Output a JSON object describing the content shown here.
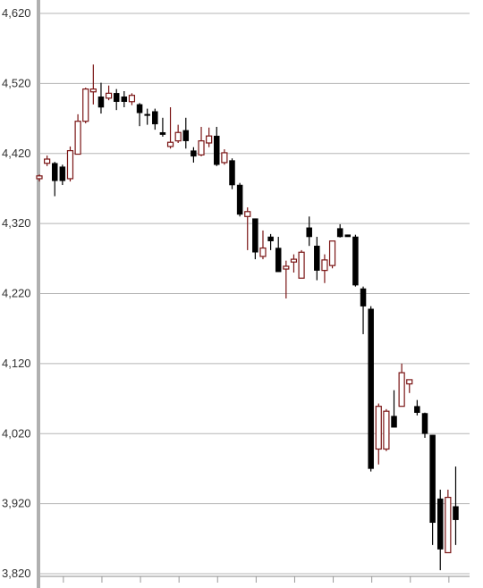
{
  "chart_data": {
    "type": "candlestick",
    "ylim": [
      3820,
      4620
    ],
    "yticks": [
      {
        "value": 3820,
        "label": "3,820"
      },
      {
        "value": 3920,
        "label": "3,920"
      },
      {
        "value": 4020,
        "label": "4,020"
      },
      {
        "value": 4120,
        "label": "4,120"
      },
      {
        "value": 4220,
        "label": "4,220"
      },
      {
        "value": 4320,
        "label": "4,320"
      },
      {
        "value": 4420,
        "label": "4,420"
      },
      {
        "value": 4520,
        "label": "4,520"
      },
      {
        "value": 4620,
        "label": "4,620"
      }
    ],
    "grid": true,
    "up_color": "#7a1414",
    "down_color": "#000000",
    "open": [
      4384,
      4406,
      4406,
      4401,
      4384,
      4419,
      4466,
      4508,
      4501,
      4499,
      4506,
      4501,
      4494,
      4490,
      4476,
      4480,
      4450,
      4430,
      4438,
      4453,
      4424,
      4418,
      4435,
      4445,
      4407,
      4410,
      4375,
      4330,
      4327,
      4273,
      4301,
      4285,
      4255,
      4265,
      4242,
      4314,
      4288,
      4253,
      4260,
      4313,
      4304,
      4301,
      4227,
      4198,
      3998,
      3998,
      4045,
      4059,
      4091,
      4059,
      4049,
      4018,
      3927,
      3850,
      3916
    ],
    "high": [
      4390,
      4417,
      4408,
      4404,
      4430,
      4476,
      4514,
      4547,
      4521,
      4517,
      4512,
      4509,
      4506,
      4492,
      4484,
      4484,
      4471,
      4486,
      4461,
      4471,
      4429,
      4458,
      4457,
      4458,
      4426,
      4413,
      4378,
      4343,
      4327,
      4310,
      4305,
      4301,
      4267,
      4276,
      4282,
      4330,
      4301,
      4276,
      4295,
      4319,
      4304,
      4304,
      4230,
      4202,
      4063,
      4055,
      4082,
      4120,
      4097,
      4068,
      4050,
      4018,
      3940,
      3940,
      3973
    ],
    "low": [
      4380,
      4402,
      4359,
      4375,
      4380,
      4419,
      4463,
      4490,
      4477,
      4496,
      4482,
      4486,
      4489,
      4459,
      4461,
      4454,
      4444,
      4427,
      4435,
      4427,
      4407,
      4416,
      4429,
      4402,
      4404,
      4369,
      4330,
      4282,
      4269,
      4269,
      4282,
      4251,
      4213,
      4250,
      4242,
      4288,
      4239,
      4235,
      4256,
      4300,
      4301,
      4230,
      4162,
      3966,
      3976,
      3995,
      4029,
      4059,
      4078,
      4046,
      4014,
      3861,
      3825,
      3850,
      3861
    ],
    "close": [
      4388,
      4412,
      4381,
      4381,
      4424,
      4466,
      4512,
      4512,
      4486,
      4506,
      4494,
      4494,
      4503,
      4478,
      4475,
      4462,
      4447,
      4436,
      4450,
      4438,
      4416,
      4438,
      4445,
      4404,
      4421,
      4375,
      4333,
      4337,
      4279,
      4285,
      4295,
      4251,
      4259,
      4269,
      4279,
      4301,
      4253,
      4268,
      4295,
      4301,
      4301,
      4232,
      4202,
      3970,
      4059,
      4052,
      4029,
      4107,
      4097,
      4050,
      4020,
      3893,
      3855,
      3929,
      3897
    ]
  }
}
